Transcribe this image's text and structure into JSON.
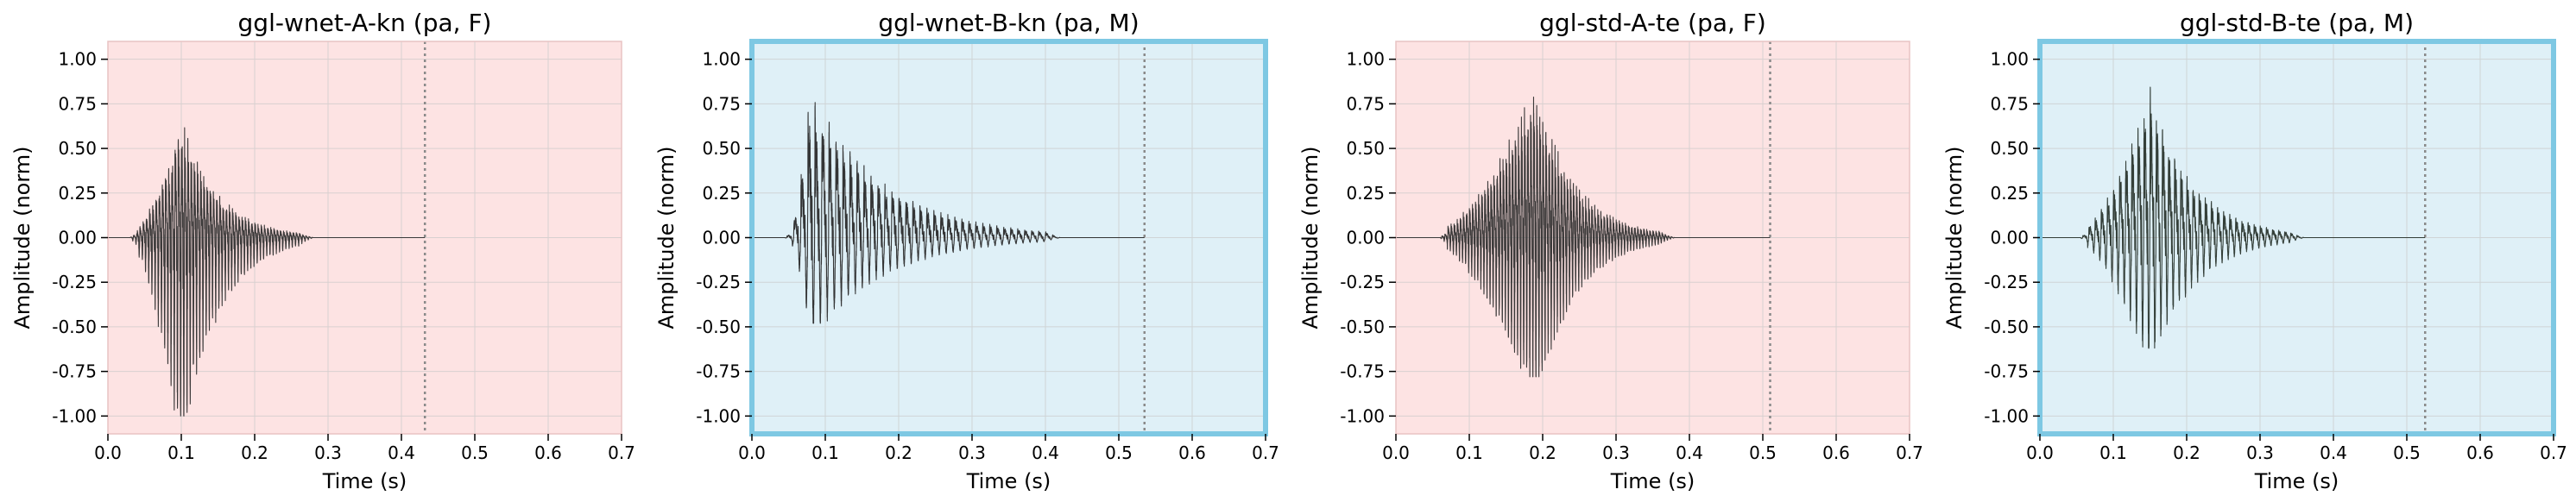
{
  "chart_data": [
    {
      "type": "line",
      "title": "ggl-wnet-A-kn (pa, F)",
      "xlabel": "Time (s)",
      "ylabel": "Amplitude (norm)",
      "xlim": [
        0.0,
        0.7
      ],
      "ylim": [
        -1.1,
        1.1
      ],
      "xticks": [
        "0.0",
        "0.1",
        "0.2",
        "0.3",
        "0.4",
        "0.5",
        "0.6",
        "0.7"
      ],
      "yticks": [
        "1.00",
        "0.75",
        "0.50",
        "0.25",
        "0.00",
        "-0.25",
        "-0.50",
        "-0.75",
        "-1.00"
      ],
      "grid": true,
      "background": "#fde3e3",
      "highlight_border": false,
      "end_marker_x": 0.432,
      "waveform": {
        "onset_s": 0.04,
        "peak_s": 0.1,
        "decay_end_s": 0.26,
        "pos_peak": 0.8,
        "neg_peak": -1.0,
        "f0_hz": 230,
        "color": "#2b2b2b"
      }
    },
    {
      "type": "line",
      "title": "ggl-wnet-B-kn (pa, M)",
      "xlabel": "Time (s)",
      "ylabel": "Amplitude (norm)",
      "xlim": [
        0.0,
        0.7
      ],
      "ylim": [
        -1.1,
        1.1
      ],
      "xticks": [
        "0.0",
        "0.1",
        "0.2",
        "0.3",
        "0.4",
        "0.5",
        "0.6",
        "0.7"
      ],
      "yticks": [
        "1.00",
        "0.75",
        "0.50",
        "0.25",
        "0.00",
        "-0.25",
        "-0.50",
        "-0.75",
        "-1.00"
      ],
      "grid": true,
      "background": "#dff0f7",
      "highlight_border": true,
      "border_color": "#7ec8e3",
      "end_marker_x": 0.535,
      "waveform": {
        "onset_s": 0.055,
        "peak_s": 0.08,
        "decay_end_s": 0.4,
        "pos_peak": 1.0,
        "neg_peak": -0.48,
        "f0_hz": 105,
        "color": "#252525"
      }
    },
    {
      "type": "line",
      "title": "ggl-std-A-te (pa, F)",
      "xlabel": "Time (s)",
      "ylabel": "Amplitude (norm)",
      "xlim": [
        0.0,
        0.7
      ],
      "ylim": [
        -1.1,
        1.1
      ],
      "xticks": [
        "0.0",
        "0.1",
        "0.2",
        "0.3",
        "0.4",
        "0.5",
        "0.6",
        "0.7"
      ],
      "yticks": [
        "1.00",
        "0.75",
        "0.50",
        "0.25",
        "0.00",
        "-0.25",
        "-0.50",
        "-0.75",
        "-1.00"
      ],
      "grid": true,
      "background": "#fde3e3",
      "highlight_border": false,
      "end_marker_x": 0.51,
      "waveform": {
        "onset_s": 0.07,
        "peak_s": 0.19,
        "decay_end_s": 0.36,
        "pos_peak": 1.0,
        "neg_peak": -0.78,
        "f0_hz": 240,
        "color": "#2b2b2b"
      }
    },
    {
      "type": "line",
      "title": "ggl-std-B-te (pa, M)",
      "xlabel": "Time (s)",
      "ylabel": "Amplitude (norm)",
      "xlim": [
        0.0,
        0.7
      ],
      "ylim": [
        -1.1,
        1.1
      ],
      "xticks": [
        "0.0",
        "0.1",
        "0.2",
        "0.3",
        "0.4",
        "0.5",
        "0.6",
        "0.7"
      ],
      "yticks": [
        "1.00",
        "0.75",
        "0.50",
        "0.25",
        "0.00",
        "-0.25",
        "-0.50",
        "-0.75",
        "-1.00"
      ],
      "grid": true,
      "background": "#dff0f7",
      "highlight_border": true,
      "border_color": "#7ec8e3",
      "end_marker_x": 0.525,
      "waveform": {
        "onset_s": 0.065,
        "peak_s": 0.15,
        "decay_end_s": 0.34,
        "pos_peak": 1.0,
        "neg_peak": -0.62,
        "f0_hz": 120,
        "color": "#253028"
      }
    }
  ]
}
